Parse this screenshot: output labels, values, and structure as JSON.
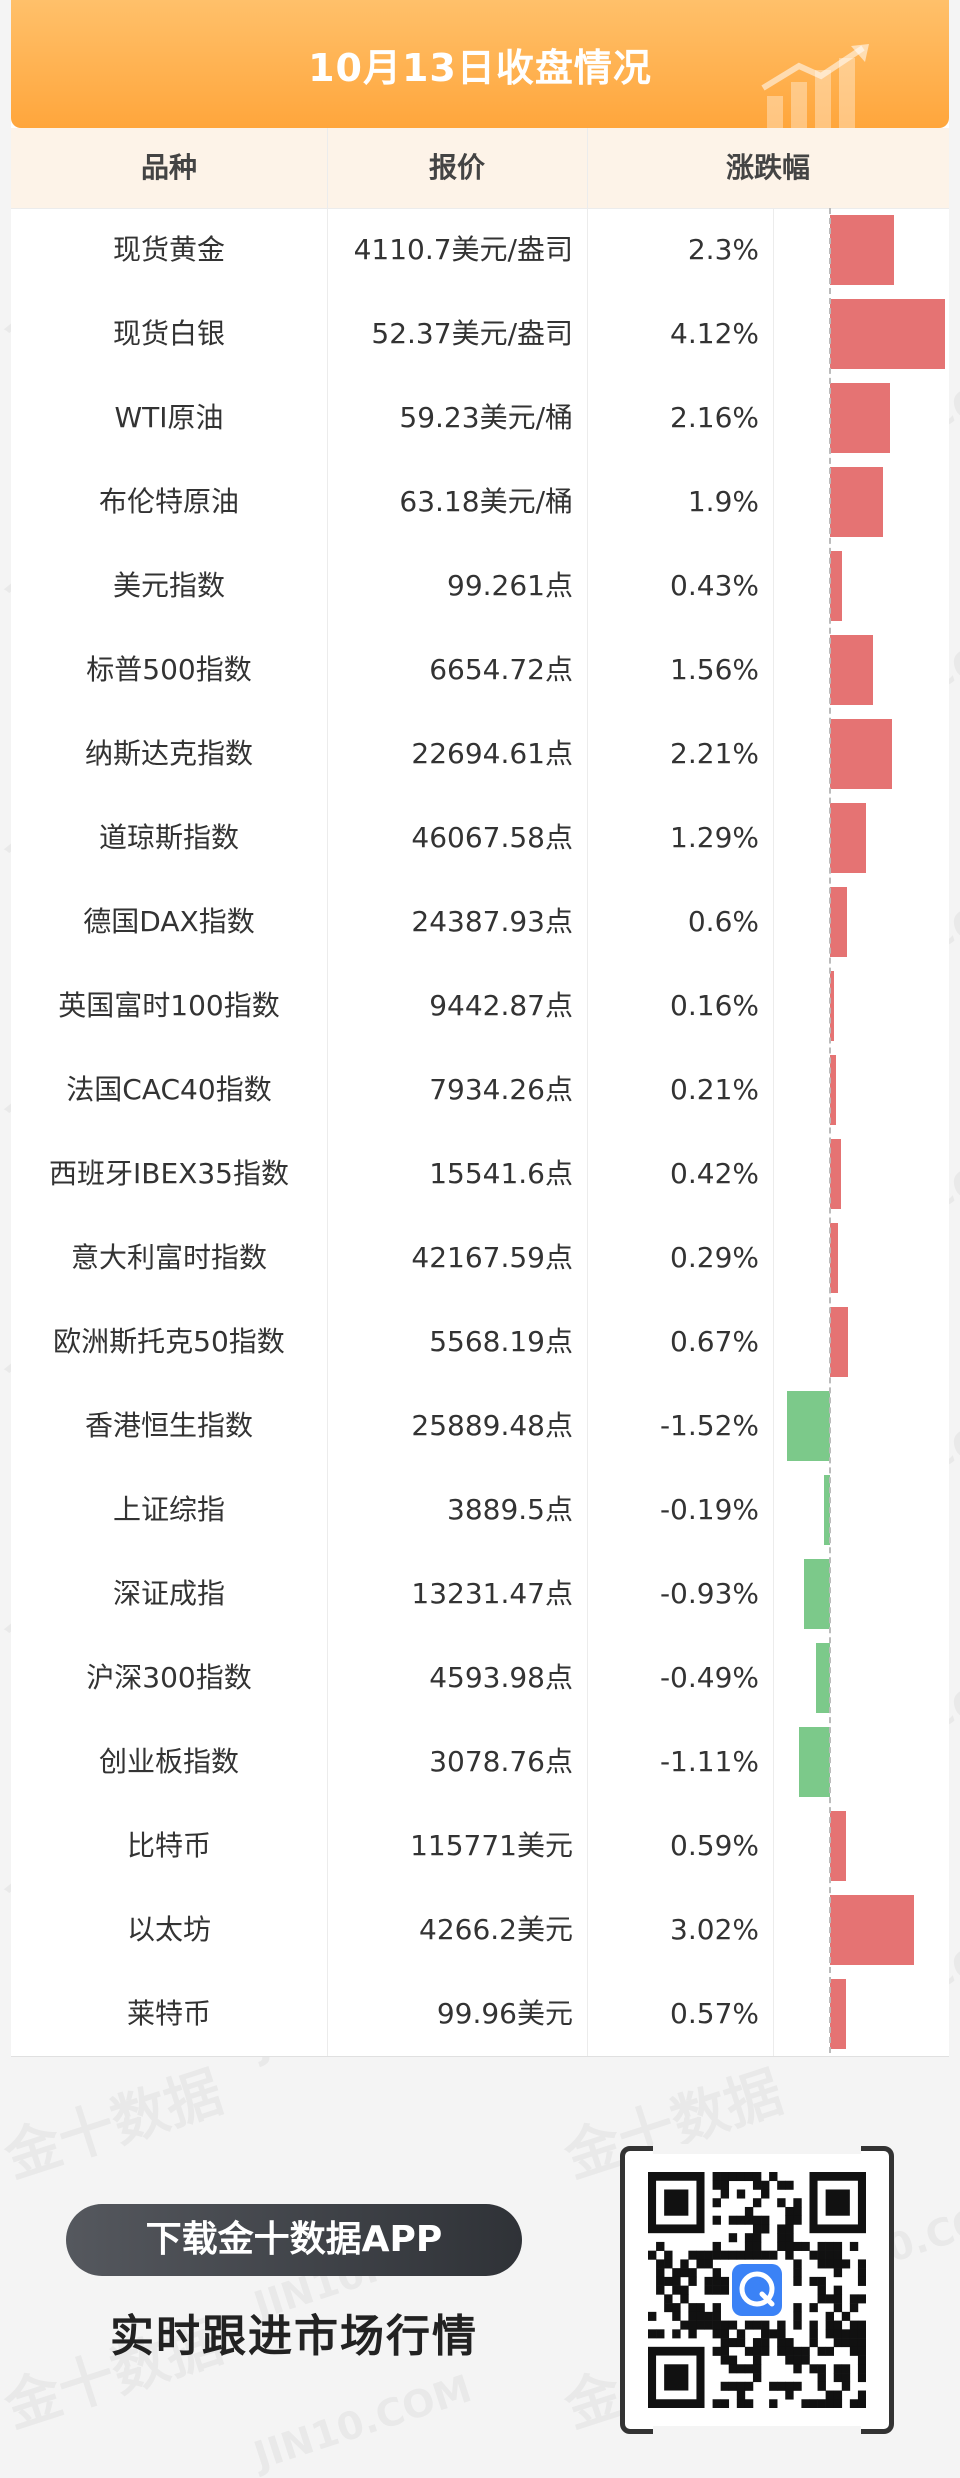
{
  "watermark": {
    "cn": "金十数据",
    "en": "JIN10.COM"
  },
  "title": "10月13日收盘情况",
  "headers": {
    "name": "品种",
    "price": "报价",
    "change": "涨跌幅"
  },
  "colors": {
    "accent": "#ffa63c",
    "up": "#e57373",
    "down": "#7cc98a"
  },
  "chart_data": {
    "type": "bar",
    "orientation": "horizontal",
    "categories": [
      "现货黄金",
      "现货白银",
      "WTI原油",
      "布伦特原油",
      "美元指数",
      "标普500指数",
      "纳斯达克指数",
      "道琼斯指数",
      "德国DAX指数",
      "英国富时100指数",
      "法国CAC40指数",
      "西班牙IBEX35指数",
      "意大利富时指数",
      "欧洲斯托克50指数",
      "香港恒生指数",
      "上证综指",
      "深证成指",
      "沪深300指数",
      "创业板指数",
      "比特币",
      "以太坊",
      "莱特币"
    ],
    "values": [
      2.3,
      4.12,
      2.16,
      1.9,
      0.43,
      1.56,
      2.21,
      1.29,
      0.6,
      0.16,
      0.21,
      0.42,
      0.29,
      0.67,
      -1.52,
      -0.19,
      -0.93,
      -0.49,
      -1.11,
      0.59,
      3.02,
      0.57
    ],
    "xlim": [
      -1.6,
      4.12
    ],
    "grid": false,
    "legend": "none"
  },
  "rows": [
    {
      "name": "现货黄金",
      "price": "4110.7美元/盎司",
      "change": "2.3%"
    },
    {
      "name": "现货白银",
      "price": "52.37美元/盎司",
      "change": "4.12%"
    },
    {
      "name": "WTI原油",
      "price": "59.23美元/桶",
      "change": "2.16%"
    },
    {
      "name": "布伦特原油",
      "price": "63.18美元/桶",
      "change": "1.9%"
    },
    {
      "name": "美元指数",
      "price": "99.261点",
      "change": "0.43%"
    },
    {
      "name": "标普500指数",
      "price": "6654.72点",
      "change": "1.56%"
    },
    {
      "name": "纳斯达克指数",
      "price": "22694.61点",
      "change": "2.21%"
    },
    {
      "name": "道琼斯指数",
      "price": "46067.58点",
      "change": "1.29%"
    },
    {
      "name": "德国DAX指数",
      "price": "24387.93点",
      "change": "0.6%"
    },
    {
      "name": "英国富时100指数",
      "price": "9442.87点",
      "change": "0.16%"
    },
    {
      "name": "法国CAC40指数",
      "price": "7934.26点",
      "change": "0.21%"
    },
    {
      "name": "西班牙IBEX35指数",
      "price": "15541.6点",
      "change": "0.42%"
    },
    {
      "name": "意大利富时指数",
      "price": "42167.59点",
      "change": "0.29%"
    },
    {
      "name": "欧洲斯托克50指数",
      "price": "5568.19点",
      "change": "0.67%"
    },
    {
      "name": "香港恒生指数",
      "price": "25889.48点",
      "change": "-1.52%"
    },
    {
      "name": "上证综指",
      "price": "3889.5点",
      "change": "-0.19%"
    },
    {
      "name": "深证成指",
      "price": "13231.47点",
      "change": "-0.93%"
    },
    {
      "name": "沪深300指数",
      "price": "4593.98点",
      "change": "-0.49%"
    },
    {
      "name": "创业板指数",
      "price": "3078.76点",
      "change": "-1.11%"
    },
    {
      "name": "比特币",
      "price": "115771美元",
      "change": "0.59%"
    },
    {
      "name": "以太坊",
      "price": "4266.2美元",
      "change": "3.02%"
    },
    {
      "name": "莱特币",
      "price": "99.96美元",
      "change": "0.57%"
    }
  ],
  "cta": {
    "button": "下载金十数据APP",
    "subtitle": "实时跟进市场行情"
  },
  "icons": {
    "title_decoration": "growth-chart-icon",
    "qr": "qr-code-icon",
    "app_logo": "jin10-logo-icon"
  }
}
